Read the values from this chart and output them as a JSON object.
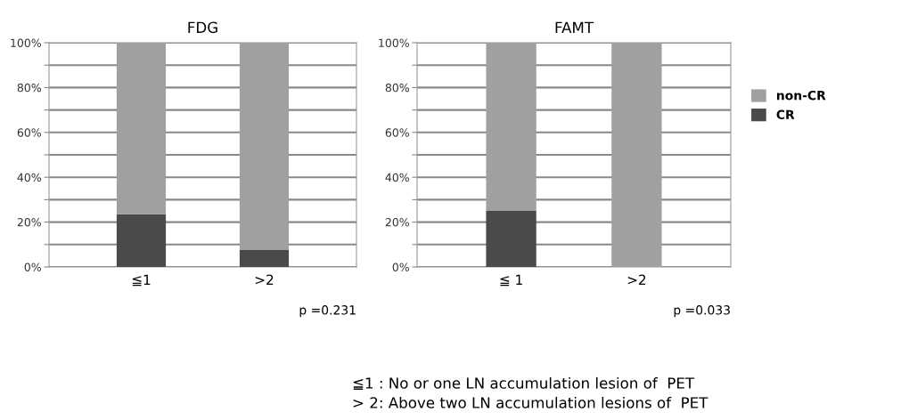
{
  "chart_data": [
    {
      "type": "bar",
      "title": "FDG",
      "categories": [
        "≦1",
        ">2"
      ],
      "stacked": true,
      "series": [
        {
          "color": "#4a4a4a",
          "values": [
            23.5,
            7.5
          ]
        },
        {
          "color": "#a0a0a0",
          "values": [
            76.5,
            92.5
          ]
        }
      ],
      "ylim": [
        0,
        100
      ],
      "yticks": [
        {
          "value": 0,
          "label": "0%"
        },
        {
          "value": 10,
          "label": null
        },
        {
          "value": 20,
          "label": "20%"
        },
        {
          "value": 30,
          "label": null
        },
        {
          "value": 40,
          "label": "40%"
        },
        {
          "value": 50,
          "label": null
        },
        {
          "value": 60,
          "label": "60%"
        },
        {
          "value": 70,
          "label": null
        },
        {
          "value": 80,
          "label": "80%"
        },
        {
          "value": 90,
          "label": null
        },
        {
          "value": 100,
          "label": "100%"
        }
      ],
      "grid": "y",
      "legend": false,
      "annotations": [
        "p =0.231"
      ]
    },
    {
      "type": "bar",
      "title": "FAMT",
      "categories": [
        "≦ 1",
        ">2"
      ],
      "stacked": true,
      "series": [
        {
          "name": "CR",
          "color": "#4a4a4a",
          "values": [
            25,
            0
          ]
        },
        {
          "name": "non-CR",
          "color": "#a0a0a0",
          "values": [
            75,
            100
          ]
        }
      ],
      "ylim": [
        0,
        100
      ],
      "yticks": [
        {
          "value": 0,
          "label": "0%"
        },
        {
          "value": 10,
          "label": null
        },
        {
          "value": 20,
          "label": "20%"
        },
        {
          "value": 30,
          "label": null
        },
        {
          "value": 40,
          "label": "40%"
        },
        {
          "value": 50,
          "label": null
        },
        {
          "value": 60,
          "label": "60%"
        },
        {
          "value": 70,
          "label": null
        },
        {
          "value": 80,
          "label": "80%"
        },
        {
          "value": 90,
          "label": null
        },
        {
          "value": 100,
          "label": "100%"
        }
      ],
      "grid": "y",
      "legend": "right",
      "annotations": [
        "p =0.033",
        "≦1 : No or one LN accumulation lesion of  PET",
        "> 2: Above two LN accumulation lesions of  PET"
      ]
    }
  ]
}
